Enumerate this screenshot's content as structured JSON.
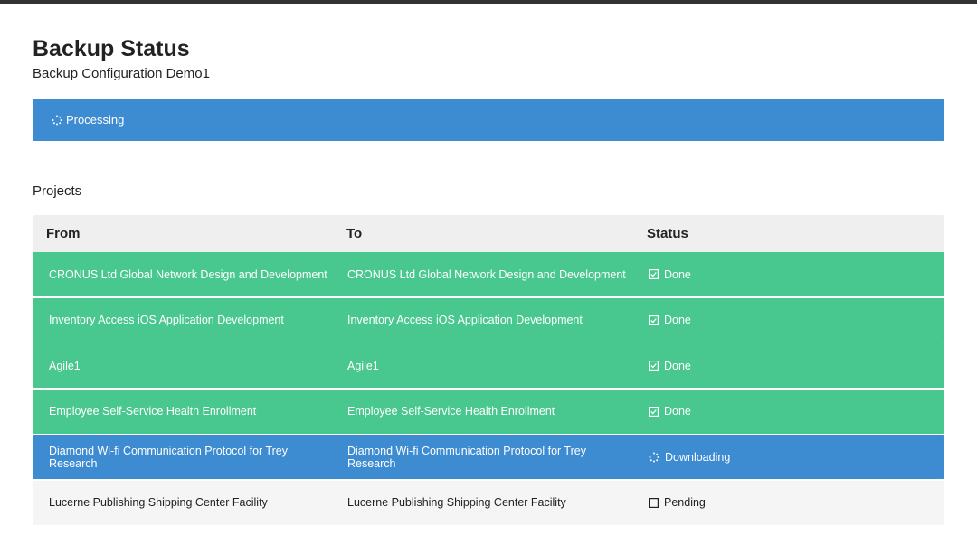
{
  "header": {
    "title": "Backup Status",
    "subtitle": "Backup Configuration Demo1"
  },
  "banner": {
    "text": "Processing"
  },
  "section": {
    "title": "Projects"
  },
  "table": {
    "columns": [
      "From",
      "To",
      "Status"
    ],
    "rows": [
      [
        "CRONUS Ltd Global Network Design and Development",
        "CRONUS Ltd Global Network Design and Development",
        "Done"
      ],
      [
        "Inventory Access iOS Application Development",
        "Inventory Access iOS Application Development",
        "Done"
      ],
      [
        "Agile1",
        "Agile1",
        "Done"
      ],
      [
        "Employee Self-Service Health Enrollment",
        "Employee Self-Service Health Enrollment",
        "Done"
      ],
      [
        "Diamond Wi-fi Communication Protocol for Trey Research",
        "Diamond Wi-fi Communication Protocol for Trey Research",
        "Downloading"
      ],
      [
        "Lucerne Publishing Shipping Center Facility",
        "Lucerne Publishing Shipping Center Facility",
        "Pending"
      ]
    ]
  }
}
